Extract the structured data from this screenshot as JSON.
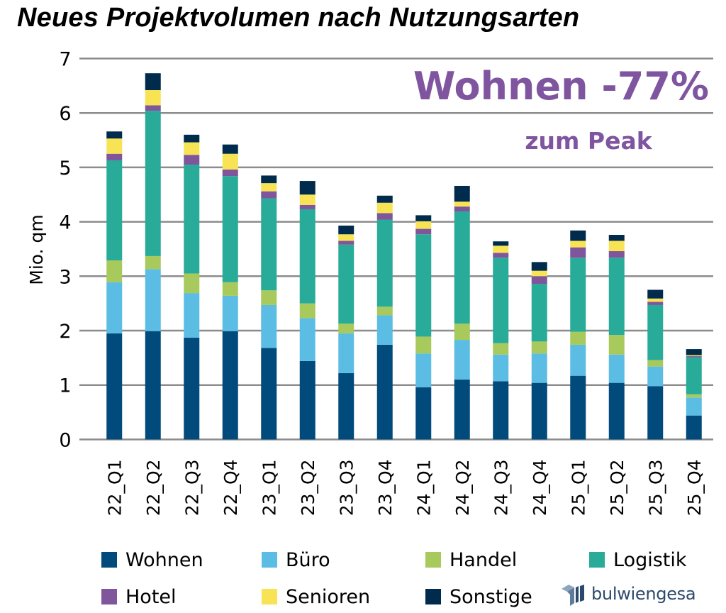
{
  "chart_data": {
    "type": "bar",
    "stacked": true,
    "title": "Neues Projektvolumen nach Nutzungsarten",
    "xlabel": "",
    "ylabel": "Mio. qm",
    "ylim": [
      0,
      7
    ],
    "yticks": [
      "0",
      "1",
      "2",
      "3",
      "4",
      "5",
      "6",
      "7"
    ],
    "grid": true,
    "legend_position": "bottom",
    "categories": [
      "22_Q1",
      "22_Q2",
      "22_Q3",
      "22_Q4",
      "23_Q1",
      "23_Q2",
      "23_Q3",
      "23_Q4",
      "24_Q1",
      "24_Q2",
      "24_Q3",
      "24_Q4",
      "25_Q1",
      "25_Q2",
      "25_Q3",
      "25_Q4"
    ],
    "series": [
      {
        "name": "Wohnen",
        "color": "#004a7c",
        "values": [
          1.95,
          1.99,
          1.87,
          1.99,
          1.68,
          1.44,
          1.22,
          1.74,
          0.96,
          1.1,
          1.07,
          1.04,
          1.17,
          1.04,
          0.98,
          0.44
        ]
      },
      {
        "name": "Büro",
        "color": "#5bbde4",
        "values": [
          0.94,
          1.14,
          0.82,
          0.65,
          0.79,
          0.79,
          0.73,
          0.54,
          0.62,
          0.73,
          0.49,
          0.54,
          0.57,
          0.52,
          0.36,
          0.33
        ]
      },
      {
        "name": "Handel",
        "color": "#a8c95c",
        "values": [
          0.4,
          0.24,
          0.36,
          0.25,
          0.27,
          0.27,
          0.18,
          0.16,
          0.31,
          0.3,
          0.21,
          0.22,
          0.24,
          0.36,
          0.12,
          0.06
        ]
      },
      {
        "name": "Logistik",
        "color": "#28ab99",
        "values": [
          1.84,
          2.67,
          2.0,
          1.95,
          1.69,
          1.73,
          1.45,
          1.6,
          1.88,
          2.06,
          1.57,
          1.06,
          1.36,
          1.42,
          1.01,
          0.68
        ]
      },
      {
        "name": "Hotel",
        "color": "#7f559b",
        "values": [
          0.12,
          0.1,
          0.18,
          0.12,
          0.13,
          0.08,
          0.07,
          0.12,
          0.1,
          0.09,
          0.09,
          0.14,
          0.19,
          0.12,
          0.06,
          0.02
        ]
      },
      {
        "name": "Senioren",
        "color": "#f7e354",
        "values": [
          0.28,
          0.28,
          0.23,
          0.29,
          0.15,
          0.19,
          0.12,
          0.19,
          0.14,
          0.09,
          0.13,
          0.1,
          0.12,
          0.19,
          0.06,
          0.02
        ]
      },
      {
        "name": "Sonstige",
        "color": "#002b4c",
        "values": [
          0.13,
          0.31,
          0.14,
          0.17,
          0.14,
          0.25,
          0.16,
          0.13,
          0.11,
          0.29,
          0.08,
          0.16,
          0.19,
          0.11,
          0.16,
          0.11
        ]
      }
    ],
    "annotations": [
      "Wohnen -77%",
      "zum Peak"
    ]
  },
  "legend_order": [
    [
      "Wohnen",
      "Büro",
      "Handel",
      "Logistik"
    ],
    [
      "Hotel",
      "Senioren",
      "Sonstige"
    ]
  ],
  "logo": {
    "text": "bulwiengesa",
    "icon": "bulwiengesa-logo-icon",
    "color": "#2b4a6b"
  },
  "colors": {
    "grid": "#8c8c8c",
    "annotation": "#7f55a0"
  }
}
